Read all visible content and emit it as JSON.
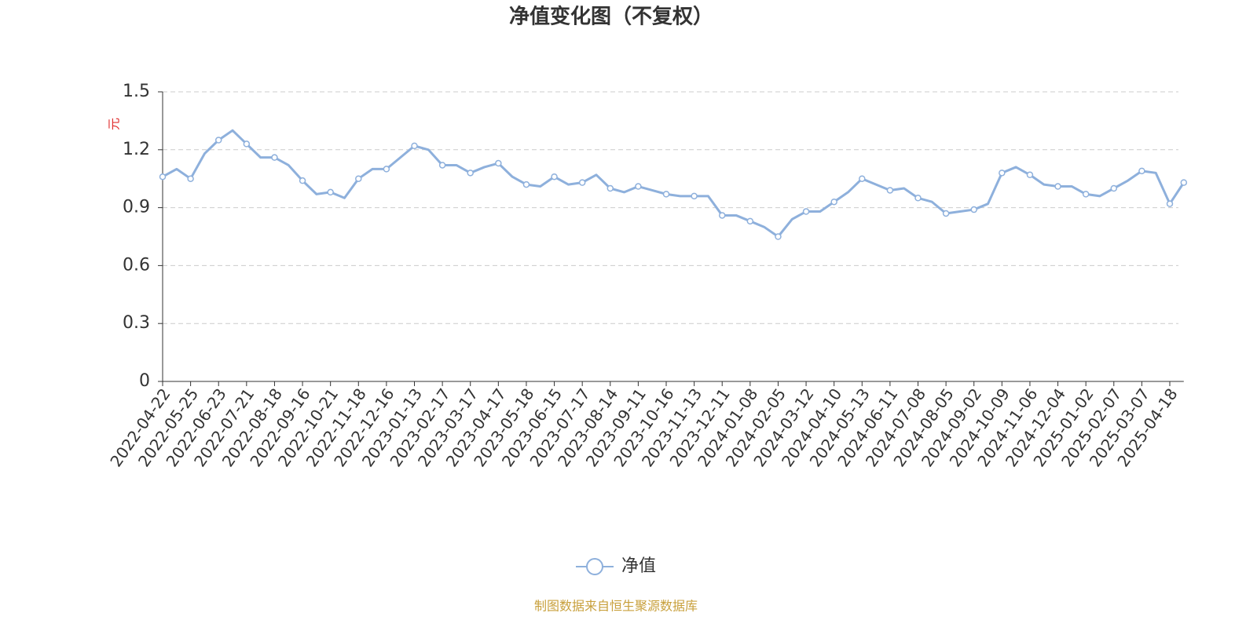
{
  "chart_data": {
    "type": "line",
    "title": "净值变化图（不复权）",
    "y_label": "元",
    "source": "制图数据来自恒生聚源数据库",
    "categories": [
      "2022-04-22",
      null,
      "2022-05-25",
      null,
      "2022-06-23",
      null,
      "2022-07-21",
      null,
      "2022-08-18",
      null,
      "2022-09-16",
      null,
      "2022-10-21",
      null,
      "2022-11-18",
      null,
      "2022-12-16",
      null,
      "2023-01-13",
      null,
      "2023-02-17",
      null,
      "2023-03-17",
      null,
      "2023-04-17",
      null,
      "2023-05-18",
      null,
      "2023-06-15",
      null,
      "2023-07-17",
      null,
      "2023-08-14",
      null,
      "2023-09-11",
      null,
      "2023-10-16",
      null,
      "2023-11-13",
      null,
      "2023-12-11",
      null,
      "2024-01-08",
      null,
      "2024-02-05",
      null,
      "2024-03-12",
      null,
      "2024-04-10",
      null,
      "2024-05-13",
      null,
      "2024-06-11",
      null,
      "2024-07-08",
      null,
      "2024-08-05",
      null,
      "2024-09-02",
      null,
      "2024-10-09",
      null,
      "2024-11-06",
      null,
      "2024-12-04",
      null,
      "2025-01-02",
      null,
      "2025-02-07",
      null,
      "2025-03-07",
      null,
      "2025-04-18",
      null
    ],
    "series": [
      {
        "name": "净值",
        "color": "#8eb0dc",
        "values": [
          1.06,
          1.1,
          1.05,
          1.18,
          1.25,
          1.3,
          1.23,
          1.16,
          1.16,
          1.12,
          1.04,
          0.97,
          0.98,
          0.95,
          1.05,
          1.1,
          1.1,
          1.16,
          1.22,
          1.2,
          1.12,
          1.12,
          1.08,
          1.11,
          1.13,
          1.06,
          1.02,
          1.01,
          1.06,
          1.02,
          1.03,
          1.07,
          1.0,
          0.98,
          1.01,
          0.99,
          0.97,
          0.96,
          0.96,
          0.96,
          0.86,
          0.86,
          0.83,
          0.8,
          0.75,
          0.84,
          0.88,
          0.88,
          0.93,
          0.98,
          1.05,
          1.02,
          0.99,
          1.0,
          0.95,
          0.93,
          0.87,
          0.88,
          0.89,
          0.92,
          1.08,
          1.11,
          1.07,
          1.02,
          1.01,
          1.01,
          0.97,
          0.96,
          1.0,
          1.04,
          1.09,
          1.08,
          0.92,
          1.03
        ]
      }
    ],
    "ylim": [
      0,
      1.5
    ],
    "yticks": [
      0,
      0.3,
      0.6,
      0.9,
      1.2,
      1.5
    ],
    "grid": true
  }
}
